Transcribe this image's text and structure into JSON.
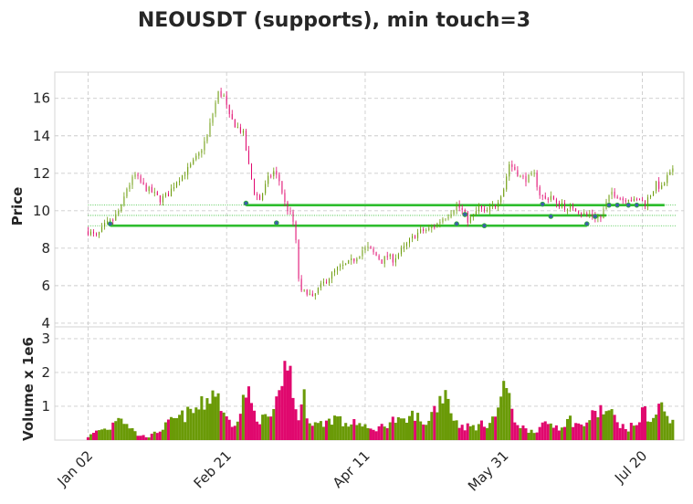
{
  "title": "NEOUSDT (supports), min touch=3",
  "colors": {
    "up": "#6a9a07",
    "down": "#e0086e",
    "support_line": "#2ebd2e",
    "touch_marker": "#3c5fa8"
  },
  "chart_data": [
    {
      "type": "candlestick",
      "panel": "price",
      "ylabel": "Price",
      "ylim": [
        3.8,
        17.4
      ],
      "yticks": [
        4,
        6,
        8,
        10,
        12,
        14,
        16
      ],
      "x_tick_labels": [
        "Jan 02",
        "Feb 21",
        "Apr 11",
        "May 31",
        "Jul 20"
      ],
      "x_tick_days": [
        0,
        50,
        100,
        150,
        200
      ],
      "x_range_days": [
        -12,
        215
      ],
      "grid": true,
      "close_path": [
        [
          0,
          8.9
        ],
        [
          3,
          8.6
        ],
        [
          6,
          9.2
        ],
        [
          9,
          9.5
        ],
        [
          12,
          10.2
        ],
        [
          14,
          11.2
        ],
        [
          17,
          11.9
        ],
        [
          20,
          11.3
        ],
        [
          23,
          11.0
        ],
        [
          26,
          10.6
        ],
        [
          29,
          10.9
        ],
        [
          32,
          11.6
        ],
        [
          36,
          12.2
        ],
        [
          40,
          13.0
        ],
        [
          43,
          14.0
        ],
        [
          45,
          15.2
        ],
        [
          47,
          16.3
        ],
        [
          49,
          16.1
        ],
        [
          51,
          15.0
        ],
        [
          53,
          14.6
        ],
        [
          56,
          14.1
        ],
        [
          58,
          12.4
        ],
        [
          60,
          11.0
        ],
        [
          62,
          10.6
        ],
        [
          65,
          11.7
        ],
        [
          67,
          12.1
        ],
        [
          69,
          11.6
        ],
        [
          71,
          10.4
        ],
        [
          73,
          9.8
        ],
        [
          74,
          9.4
        ],
        [
          75,
          8.3
        ],
        [
          76,
          6.4
        ],
        [
          77,
          5.6
        ],
        [
          79,
          5.7
        ],
        [
          81,
          5.3
        ],
        [
          83,
          5.8
        ],
        [
          86,
          6.3
        ],
        [
          88,
          6.6
        ],
        [
          90,
          6.9
        ],
        [
          93,
          7.1
        ],
        [
          96,
          7.4
        ],
        [
          99,
          7.9
        ],
        [
          101,
          8.0
        ],
        [
          104,
          7.6
        ],
        [
          106,
          7.3
        ],
        [
          108,
          7.6
        ],
        [
          110,
          7.4
        ],
        [
          112,
          7.7
        ],
        [
          114,
          8.0
        ],
        [
          116,
          8.4
        ],
        [
          118,
          8.7
        ],
        [
          120,
          8.9
        ],
        [
          123,
          9.0
        ],
        [
          126,
          9.3
        ],
        [
          128,
          9.6
        ],
        [
          130,
          9.8
        ],
        [
          133,
          10.3
        ],
        [
          135,
          10.0
        ],
        [
          137,
          9.5
        ],
        [
          139,
          9.7
        ],
        [
          141,
          10.2
        ],
        [
          143,
          9.9
        ],
        [
          145,
          10.1
        ],
        [
          147,
          10.3
        ],
        [
          150,
          11.2
        ],
        [
          152,
          12.5
        ],
        [
          154,
          12.2
        ],
        [
          156,
          11.8
        ],
        [
          158,
          11.7
        ],
        [
          161,
          11.9
        ],
        [
          163,
          10.9
        ],
        [
          165,
          10.6
        ],
        [
          167,
          10.8
        ],
        [
          169,
          10.3
        ],
        [
          171,
          10.4
        ],
        [
          173,
          10.0
        ],
        [
          175,
          10.2
        ],
        [
          177,
          10.0
        ],
        [
          179,
          9.8
        ],
        [
          181,
          9.8
        ],
        [
          183,
          9.7
        ],
        [
          185,
          9.6
        ],
        [
          187,
          10.4
        ],
        [
          189,
          11.0
        ],
        [
          191,
          10.8
        ],
        [
          193,
          10.6
        ],
        [
          195,
          10.7
        ],
        [
          197,
          10.5
        ],
        [
          199,
          10.6
        ],
        [
          201,
          10.4
        ],
        [
          203,
          10.9
        ],
        [
          205,
          11.4
        ],
        [
          207,
          11.2
        ],
        [
          209,
          11.8
        ],
        [
          211,
          12.1
        ]
      ],
      "supports": [
        {
          "level": 9.2,
          "from_day": 8,
          "to_day": 180
        },
        {
          "level": 9.75,
          "from_day": 138,
          "to_day": 187
        },
        {
          "level": 10.3,
          "from_day": 57,
          "to_day": 208
        },
        {
          "level": 10.3,
          "from_day": 187,
          "to_day": 208
        }
      ],
      "support_dotted_levels": [
        9.2,
        9.75,
        10.3
      ],
      "touch_points": [
        [
          8,
          9.3
        ],
        [
          57,
          10.4
        ],
        [
          68,
          9.35
        ],
        [
          133,
          9.3
        ],
        [
          136,
          9.8
        ],
        [
          143,
          9.2
        ],
        [
          164,
          10.35
        ],
        [
          167,
          9.7
        ],
        [
          180,
          9.3
        ],
        [
          183,
          9.7
        ],
        [
          188,
          10.3
        ],
        [
          191,
          10.3
        ],
        [
          195,
          10.3
        ],
        [
          198,
          10.3
        ]
      ]
    },
    {
      "type": "bar",
      "panel": "volume",
      "ylabel": "Volume x 1e6",
      "ylim": [
        0,
        3.35
      ],
      "yticks": [
        1,
        2,
        3
      ],
      "grid": true,
      "volume_path": [
        [
          0,
          0.1
        ],
        [
          4,
          0.3
        ],
        [
          8,
          0.35
        ],
        [
          11,
          0.8
        ],
        [
          14,
          0.5
        ],
        [
          18,
          0.15
        ],
        [
          22,
          0.1
        ],
        [
          26,
          0.3
        ],
        [
          30,
          0.55
        ],
        [
          34,
          0.7
        ],
        [
          38,
          0.85
        ],
        [
          41,
          1.0
        ],
        [
          43,
          1.2
        ],
        [
          45,
          1.45
        ],
        [
          47,
          1.35
        ],
        [
          49,
          0.7
        ],
        [
          52,
          0.5
        ],
        [
          55,
          0.8
        ],
        [
          57,
          1.5
        ],
        [
          60,
          0.8
        ],
        [
          63,
          0.6
        ],
        [
          66,
          0.7
        ],
        [
          68,
          1.0
        ],
        [
          70,
          1.3
        ],
        [
          72,
          2.7
        ],
        [
          74,
          1.2
        ],
        [
          76,
          0.7
        ],
        [
          78,
          1.2
        ],
        [
          80,
          0.6
        ],
        [
          83,
          0.45
        ],
        [
          86,
          0.55
        ],
        [
          90,
          0.7
        ],
        [
          93,
          0.4
        ],
        [
          96,
          0.6
        ],
        [
          99,
          0.4
        ],
        [
          102,
          0.3
        ],
        [
          106,
          0.4
        ],
        [
          110,
          0.6
        ],
        [
          114,
          0.5
        ],
        [
          118,
          0.8
        ],
        [
          121,
          0.4
        ],
        [
          124,
          0.8
        ],
        [
          127,
          1.2
        ],
        [
          129,
          1.6
        ],
        [
          131,
          0.9
        ],
        [
          133,
          0.5
        ],
        [
          136,
          0.4
        ],
        [
          140,
          0.4
        ],
        [
          144,
          0.5
        ],
        [
          148,
          0.8
        ],
        [
          150,
          1.9
        ],
        [
          152,
          1.1
        ],
        [
          154,
          0.6
        ],
        [
          158,
          0.3
        ],
        [
          162,
          0.3
        ],
        [
          166,
          0.5
        ],
        [
          170,
          0.4
        ],
        [
          174,
          0.6
        ],
        [
          178,
          0.4
        ],
        [
          182,
          0.7
        ],
        [
          185,
          0.9
        ],
        [
          188,
          0.8
        ],
        [
          191,
          0.6
        ],
        [
          194,
          0.3
        ],
        [
          198,
          0.5
        ],
        [
          201,
          0.9
        ],
        [
          203,
          0.6
        ],
        [
          205,
          0.7
        ],
        [
          207,
          1.2
        ],
        [
          209,
          0.6
        ],
        [
          211,
          0.5
        ]
      ]
    }
  ]
}
